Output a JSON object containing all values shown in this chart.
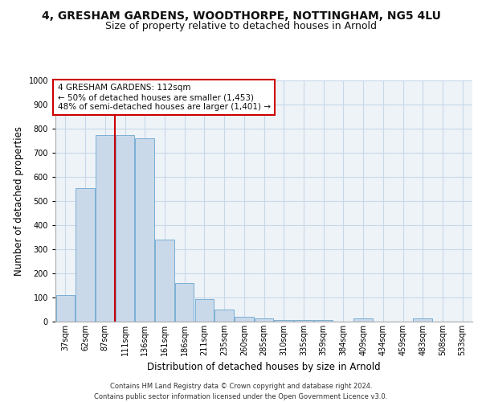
{
  "title1": "4, GRESHAM GARDENS, WOODTHORPE, NOTTINGHAM, NG5 4LU",
  "title2": "Size of property relative to detached houses in Arnold",
  "xlabel": "Distribution of detached houses by size in Arnold",
  "ylabel": "Number of detached properties",
  "categories": [
    "37sqm",
    "62sqm",
    "87sqm",
    "111sqm",
    "136sqm",
    "161sqm",
    "186sqm",
    "211sqm",
    "235sqm",
    "260sqm",
    "285sqm",
    "310sqm",
    "335sqm",
    "359sqm",
    "384sqm",
    "409sqm",
    "434sqm",
    "459sqm",
    "483sqm",
    "508sqm",
    "533sqm"
  ],
  "values": [
    110,
    555,
    775,
    775,
    760,
    340,
    160,
    95,
    50,
    20,
    12,
    8,
    8,
    8,
    0,
    12,
    0,
    0,
    12,
    0,
    0
  ],
  "bar_color": "#c9d9ea",
  "bar_edge_color": "#7bafd4",
  "grid_color": "#c8d8e8",
  "bg_color": "#eef3f8",
  "property_line_x": 2.5,
  "property_line_color": "#cc0000",
  "annotation_text": "4 GRESHAM GARDENS: 112sqm\n← 50% of detached houses are smaller (1,453)\n48% of semi-detached houses are larger (1,401) →",
  "annotation_box_color": "#cc0000",
  "footer_text": "Contains HM Land Registry data © Crown copyright and database right 2024.\nContains public sector information licensed under the Open Government Licence v3.0.",
  "ylim": [
    0,
    1000
  ],
  "yticks": [
    0,
    100,
    200,
    300,
    400,
    500,
    600,
    700,
    800,
    900,
    1000
  ],
  "title1_fontsize": 10,
  "title2_fontsize": 9,
  "tick_fontsize": 7,
  "label_fontsize": 8.5,
  "annotation_fontsize": 7.5
}
